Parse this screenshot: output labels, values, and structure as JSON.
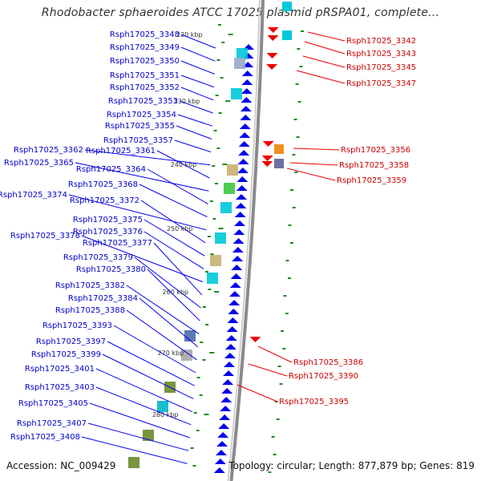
{
  "title": "Rhodobacter sphaeroides ATCC 17025 plasmid pRSPA01, complete...",
  "footer": {
    "accession": "Accession: NC_009429",
    "summary": "Topology: circular; Length: 877,879 bp; Genes: 819"
  },
  "ticks": [
    "220 kbp",
    "230 kbp",
    "240 kbp",
    "250 kbp",
    "260 kbp",
    "270 kbp",
    "280 kbp"
  ],
  "left_genes": [
    "Rsph17025_3348",
    "Rsph17025_3349",
    "Rsph17025_3350",
    "Rsph17025_3351",
    "Rsph17025_3352",
    "Rsph17025_3353",
    "Rsph17025_3354",
    "Rsph17025_3355",
    "Rsph17025_3357",
    "Rsph17025_3362",
    "Rsph17025_3361",
    "Rsph17025_3365",
    "Rsph17025_3364",
    "Rsph17025_3368",
    "Rsph17025_3374",
    "Rsph17025_3372",
    "Rsph17025_3375",
    "Rsph17025_3376",
    "Rsph17025_3378",
    "Rsph17025_3377",
    "Rsph17025_3379",
    "Rsph17025_3380",
    "Rsph17025_3382",
    "Rsph17025_3384",
    "Rsph17025_3388",
    "Rsph17025_3393",
    "Rsph17025_3397",
    "Rsph17025_3399",
    "Rsph17025_3401",
    "Rsph17025_3403",
    "Rsph17025_3405",
    "Rsph17025_3407",
    "Rsph17025_3408"
  ],
  "right_genes": [
    "Rsph17025_3342",
    "Rsph17025_3343",
    "Rsph17025_3345",
    "Rsph17025_3347",
    "Rsph17025_3356",
    "Rsph17025_3358",
    "Rsph17025_3359",
    "Rsph17025_3386",
    "Rsph17025_3390",
    "Rsph17025_3395"
  ],
  "colors": {
    "forward_strand": "#0000ee",
    "reverse_strand": "#ee0000",
    "left_label": "#0000cc",
    "right_label": "#cc0000",
    "backbone": "#8a8a8a",
    "gc_marks": "#1e8a1e"
  }
}
